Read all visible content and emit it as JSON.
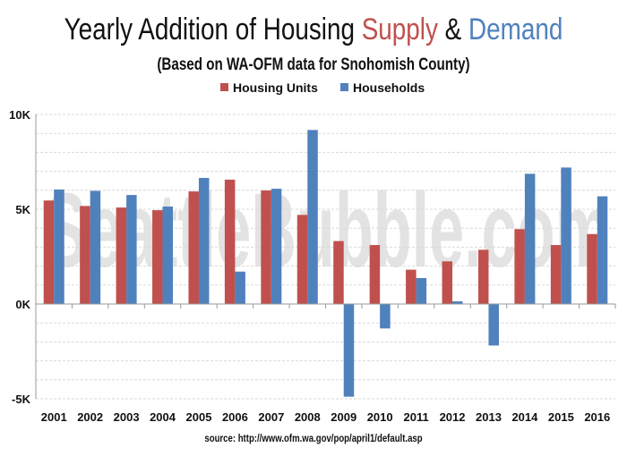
{
  "chart_data": {
    "type": "bar",
    "title_parts": [
      "Yearly Addition of Housing ",
      "Supply",
      " & ",
      "Demand"
    ],
    "subtitle": "(Based on WA-OFM data for Snohomish County)",
    "source": "source: http://www.ofm.wa.gov/pop/april1/default.asp",
    "watermark": "SeattleBubble.com",
    "categories": [
      "2001",
      "2002",
      "2003",
      "2004",
      "2005",
      "2006",
      "2007",
      "2008",
      "2009",
      "2010",
      "2011",
      "2012",
      "2013",
      "2014",
      "2015",
      "2016"
    ],
    "series": [
      {
        "name": "Housing Units",
        "color": "#c0504d",
        "values": [
          5460,
          5170,
          5090,
          4950,
          5940,
          6560,
          5990,
          4700,
          3320,
          3110,
          1810,
          2250,
          2860,
          3950,
          3110,
          3690
        ]
      },
      {
        "name": "Households",
        "color": "#4f81bd",
        "values": [
          6040,
          5970,
          5750,
          5140,
          6650,
          1710,
          6080,
          9180,
          -4890,
          -1290,
          1370,
          140,
          -2190,
          6870,
          7200,
          5680
        ]
      }
    ],
    "ylim": [
      -5000,
      10000
    ],
    "yticks": [
      {
        "v": 10000,
        "label": "10K"
      },
      {
        "v": 5000,
        "label": "5K"
      },
      {
        "v": 0,
        "label": "0K"
      },
      {
        "v": -5000,
        "label": "-5K"
      }
    ],
    "grid": true,
    "legend_position": "top-center",
    "title_colors": {
      "supply": "#c0504d",
      "demand": "#4f81bd"
    }
  }
}
